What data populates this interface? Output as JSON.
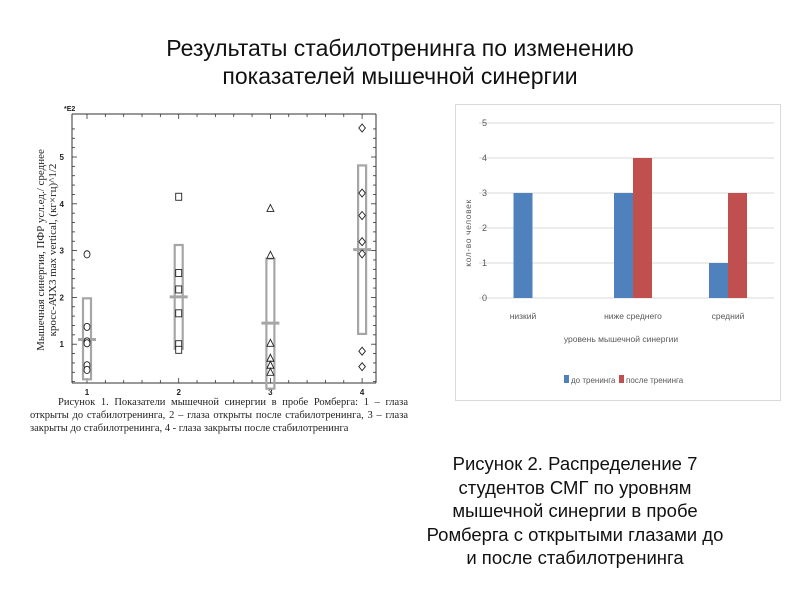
{
  "slide": {
    "title_lines": [
      "Результаты стабилотренинга по изменению",
      "показателей мышечной синергии"
    ]
  },
  "figure1": {
    "caption_lines": [
      "Рисунок 1. Показатели мышечной синергии в пробе Ромберга: 1 – глаза открыты до",
      "стабилотренинга, 2 – глаза открыты после стабилотренинга, 3 – глаза закрыты до",
      "стабилотренинга, 4 - глаза закрыты после стабилотренинга"
    ]
  },
  "figure2": {
    "caption_lines": [
      "Рисунок 2. Распределение 7",
      "студентов СМГ по уровням",
      "мышечной синергии в пробе",
      "Ромберга с открытыми глазами до",
      "и после стабилотренинга"
    ]
  },
  "colors": {
    "series_before": "#4f81bd",
    "series_after": "#c0504d",
    "box_gray": "#a6a6a6",
    "gridline": "#d9d9d9"
  },
  "chart_data": [
    {
      "type": "scatter",
      "title": "",
      "xlabel": "",
      "ylabel": "Мышечная синергия, ПФР усл.ед./ среднее кросс-АЧХ3 max vertical, (кг×гц)^1/2",
      "ylabel_lines": [
        "Мышечная синергия, ПФР усл.ед./ среднее",
        "кросс-АЧХ3 max vertical, (кг×гц)^1/2"
      ],
      "y_multiplier_label": "*E2",
      "categories": [
        "1",
        "2",
        "3",
        "4"
      ],
      "x_ticks": [
        1,
        2,
        3,
        4
      ],
      "y_ticks": [
        1,
        2,
        3,
        4,
        5
      ],
      "ylim": [
        0.2,
        5.8
      ],
      "xlim": [
        0.8,
        4.15
      ],
      "grid": false,
      "series": [
        {
          "name": "1",
          "marker": "circle",
          "points": [
            2.92,
            1.37,
            1.06,
            1.02,
            0.55,
            0.45
          ],
          "mean": 1.1,
          "box": [
            0.25,
            1.98
          ]
        },
        {
          "name": "2",
          "marker": "square",
          "points": [
            4.15,
            2.52,
            2.17,
            1.66,
            1.0,
            0.88
          ],
          "mean": 2.01,
          "box": [
            0.9,
            3.12
          ]
        },
        {
          "name": "3",
          "marker": "triangle",
          "points": [
            3.9,
            2.9,
            1.02,
            0.7,
            0.55,
            0.4
          ],
          "mean": 1.45,
          "box": [
            0.05,
            2.83
          ]
        },
        {
          "name": "4",
          "marker": "diamond",
          "points": [
            5.62,
            4.23,
            3.75,
            3.19,
            2.93,
            0.85,
            0.52
          ],
          "mean": 3.02,
          "box": [
            1.22,
            4.82
          ]
        }
      ]
    },
    {
      "type": "bar",
      "title": "",
      "xlabel": "уровень мышечной синергии",
      "ylabel": "кол-во человек",
      "categories": [
        "низкий",
        "ниже среднего",
        "средний"
      ],
      "series": [
        {
          "name": "до тренинга",
          "values": [
            3,
            3,
            1
          ]
        },
        {
          "name": "после тренинга",
          "values": [
            0,
            4,
            3
          ]
        }
      ],
      "y_ticks": [
        0,
        1,
        2,
        3,
        4,
        5
      ],
      "ylim": [
        0,
        5
      ],
      "grid": true,
      "legend_position": "bottom"
    }
  ]
}
